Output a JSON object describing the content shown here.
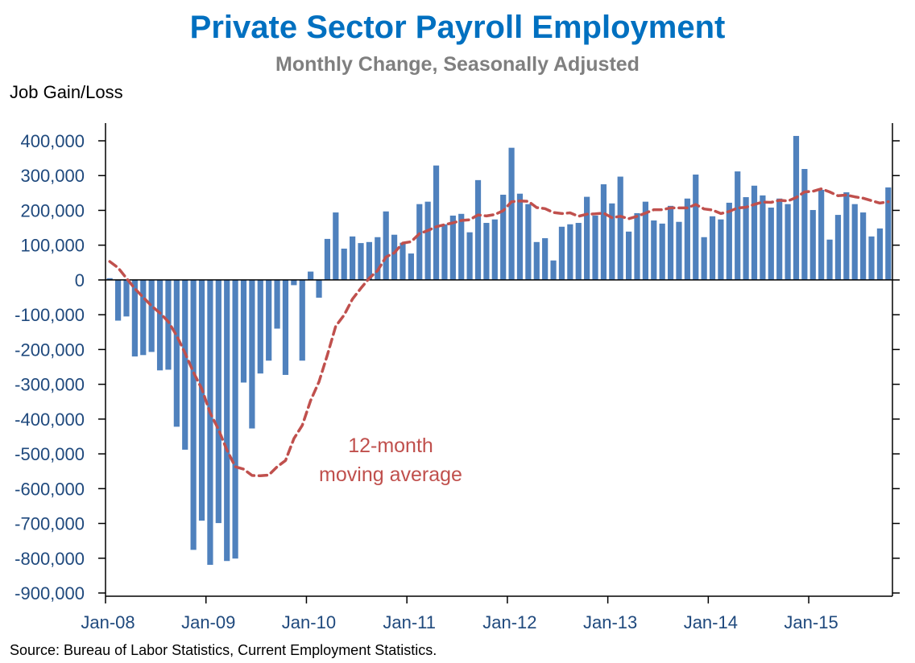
{
  "chart_data": {
    "type": "bar",
    "title": "Private Sector Payroll Employment",
    "subtitle": "Monthly Change, Seasonally Adjusted",
    "ylabel": "Job Gain/Loss",
    "xlabel": "",
    "source": "Source: Bureau of Labor Statistics, Current Employment  Statistics.",
    "annotation": [
      "12-month",
      "moving average"
    ],
    "ylim": [
      -900000,
      400000
    ],
    "y_ticks": [
      400000,
      300000,
      200000,
      100000,
      0,
      -100000,
      -200000,
      -300000,
      -400000,
      -500000,
      -600000,
      -700000,
      -800000,
      -900000
    ],
    "y_tick_labels": [
      "400,000",
      "300,000",
      "200,000",
      "100,000",
      "0",
      "-100,000",
      "-200,000",
      "-300,000",
      "-400,000",
      "-500,000",
      "-600,000",
      "-700,000",
      "-800,000",
      "-900,000"
    ],
    "x_tick_labels": [
      "Jan-08",
      "Jan-09",
      "Jan-10",
      "Jan-11",
      "Jan-12",
      "Jan-13",
      "Jan-14",
      "Jan-15"
    ],
    "x_range": [
      "Jan-08",
      "Oct-15"
    ],
    "grid": false,
    "legend": "none",
    "colors": {
      "bars": "#4f81bd",
      "moving_average": "#c0504d",
      "title": "#0070c0",
      "subtitle": "#7f7f7f",
      "ticks": "#1f497d"
    },
    "series": [
      {
        "type": "bar",
        "values": [
          5000,
          -117000,
          -105000,
          -220000,
          -216000,
          -207000,
          -260000,
          -258000,
          -422000,
          -488000,
          -776000,
          -692000,
          -819000,
          -699000,
          -808000,
          -801000,
          -295000,
          -427000,
          -269000,
          -232000,
          -140000,
          -273000,
          -15000,
          -232000,
          24000,
          -51000,
          118000,
          194000,
          90000,
          125000,
          106000,
          109000,
          123000,
          197000,
          130000,
          107000,
          76000,
          218000,
          225000,
          329000,
          160000,
          185000,
          190000,
          137000,
          287000,
          164000,
          174000,
          245000,
          380000,
          248000,
          218000,
          109000,
          120000,
          56000,
          153000,
          160000,
          164000,
          239000,
          185000,
          275000,
          220000,
          297000,
          139000,
          192000,
          225000,
          171000,
          162000,
          213000,
          167000,
          234000,
          303000,
          123000,
          183000,
          174000,
          222000,
          312000,
          238000,
          271000,
          243000,
          208000,
          234000,
          218000,
          414000,
          319000,
          201000,
          259000,
          116000,
          187000,
          252000,
          218000,
          194000,
          125000,
          148000,
          266000
        ]
      },
      {
        "type": "line",
        "name": "12-month moving average",
        "style": "dashed",
        "values": [
          53000,
          35000,
          5000,
          -25000,
          -50000,
          -75000,
          -95000,
          -120000,
          -160000,
          -210000,
          -265000,
          -313000,
          -382000,
          -430000,
          -489000,
          -537000,
          -544000,
          -562000,
          -563000,
          -561000,
          -537000,
          -519000,
          -456000,
          -418000,
          -347000,
          -293000,
          -216000,
          -133000,
          -101000,
          -55000,
          -24000,
          5000,
          27000,
          66000,
          78000,
          106000,
          110000,
          133000,
          142000,
          153000,
          159000,
          164000,
          171000,
          173000,
          187000,
          184000,
          188000,
          199000,
          225000,
          227000,
          226000,
          208000,
          205000,
          194000,
          191000,
          193000,
          183000,
          189000,
          190000,
          192000,
          179000,
          183000,
          176000,
          183000,
          192000,
          202000,
          202000,
          207000,
          207000,
          207000,
          217000,
          204000,
          201000,
          191000,
          197000,
          207000,
          209000,
          217000,
          224000,
          223000,
          229000,
          227000,
          237000,
          253000,
          255000,
          262000,
          253000,
          242000,
          244000,
          239000,
          235000,
          228000,
          221000,
          225000
        ]
      }
    ]
  }
}
